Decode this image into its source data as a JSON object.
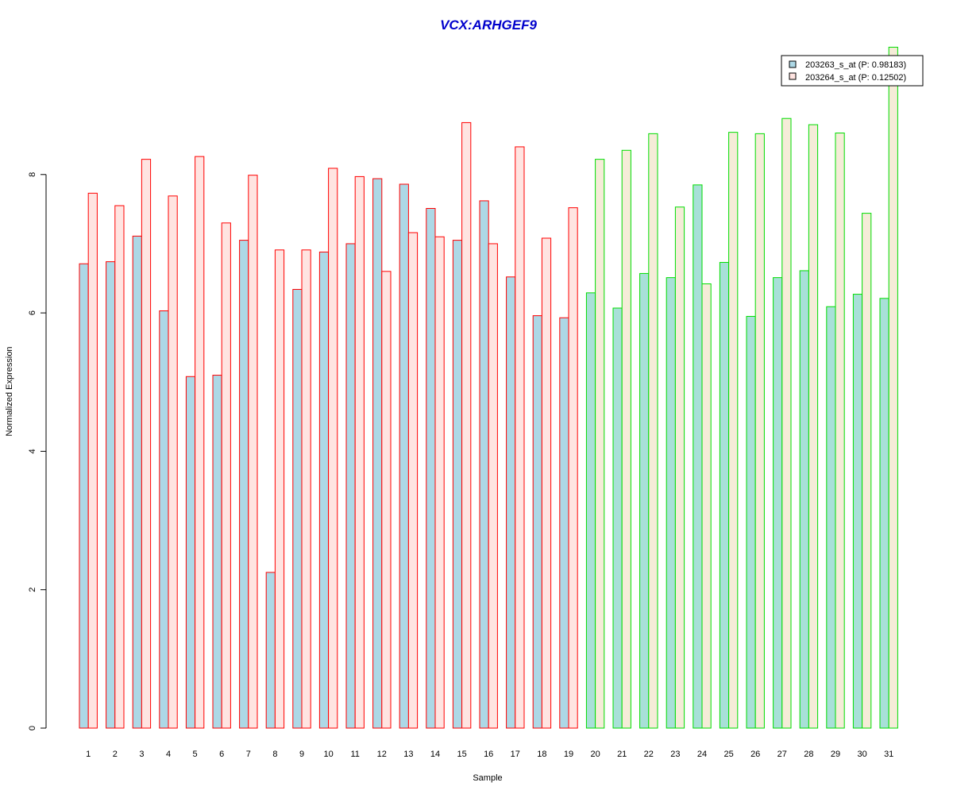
{
  "chart_data": {
    "type": "bar",
    "title": "VCX:ARHGEF9",
    "xlabel": "Sample",
    "ylabel": "Normalized Expression",
    "ylim": [
      0,
      9.8
    ],
    "yticks": [
      0,
      2,
      4,
      6,
      8
    ],
    "grid": false,
    "legend_position": "top-right",
    "categories": [
      "1",
      "2",
      "3",
      "4",
      "5",
      "6",
      "7",
      "8",
      "9",
      "10",
      "11",
      "12",
      "13",
      "14",
      "15",
      "16",
      "17",
      "18",
      "19",
      "20",
      "21",
      "22",
      "23",
      "24",
      "25",
      "26",
      "27",
      "28",
      "29",
      "30",
      "31"
    ],
    "groups": [
      {
        "samples": [
          1,
          19
        ],
        "border_color": "#ff0000"
      },
      {
        "samples": [
          20,
          31
        ],
        "border_color": "#00dd00"
      }
    ],
    "series": [
      {
        "name": "203263_s_at (P: 0.98183)",
        "legend_color": "#add8e6",
        "fill_colors": {
          "group1": "#add8e6",
          "group2": "#a8e0d8"
        },
        "values": [
          6.71,
          6.74,
          7.11,
          6.03,
          5.08,
          5.1,
          7.05,
          2.25,
          6.34,
          6.88,
          7.0,
          7.94,
          7.86,
          7.51,
          7.05,
          7.62,
          6.52,
          5.96,
          5.93,
          6.29,
          6.07,
          6.57,
          6.51,
          7.85,
          6.73,
          5.95,
          6.51,
          6.61,
          6.09,
          6.27,
          6.21
        ]
      },
      {
        "name": "203264_s_at (P: 0.12502)",
        "legend_color": "#ffe4e1",
        "fill_colors": {
          "group1": "#ffe4e1",
          "group2": "#f5ecd8"
        },
        "values": [
          7.73,
          7.55,
          8.22,
          7.69,
          8.26,
          7.3,
          7.99,
          6.91,
          6.91,
          8.09,
          7.97,
          6.6,
          7.16,
          7.1,
          8.75,
          7.0,
          8.4,
          7.08,
          7.52,
          8.22,
          8.35,
          8.59,
          7.53,
          6.42,
          8.61,
          8.59,
          8.81,
          8.72,
          8.6,
          7.44,
          9.84
        ]
      }
    ]
  }
}
